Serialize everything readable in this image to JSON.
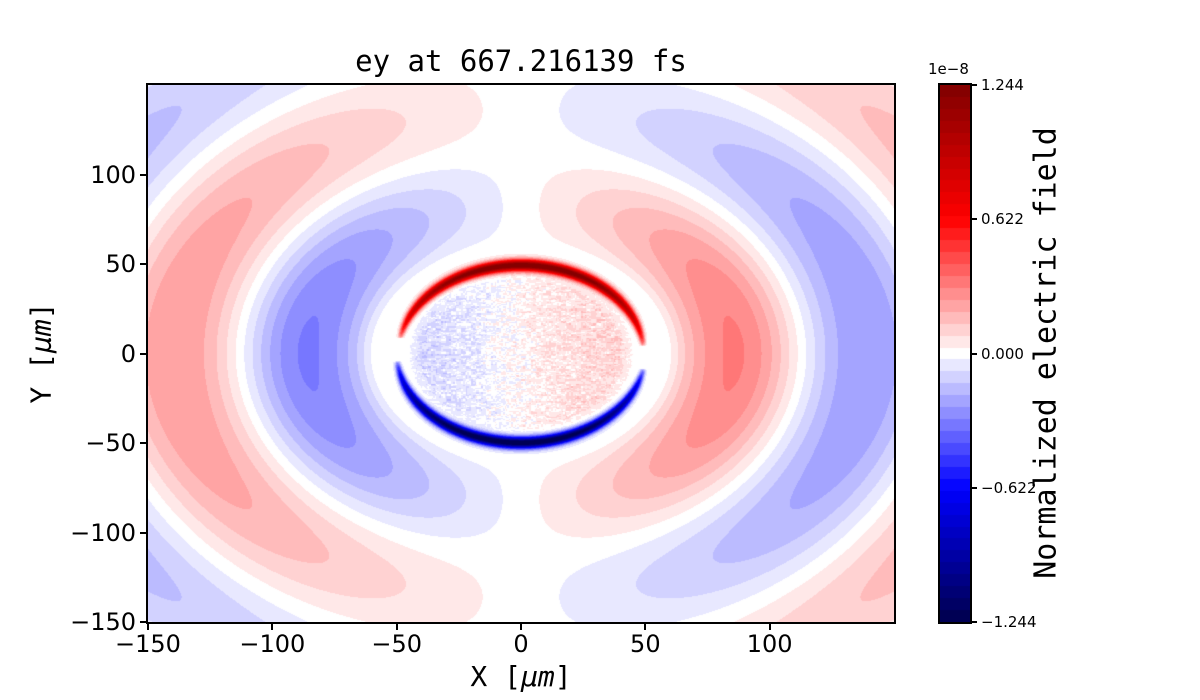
{
  "page": {
    "background": "#ffffff"
  },
  "chart_data": {
    "type": "heatmap",
    "title": "ey at 667.216139 fs",
    "xlabel": {
      "pre": "X [",
      "unit": "µm",
      "post": "]"
    },
    "ylabel": {
      "pre": "Y [",
      "unit": "µm",
      "post": "]"
    },
    "xlim": [
      -150,
      150
    ],
    "ylim": [
      -150,
      150
    ],
    "x_tick_values": [
      -150,
      -100,
      -50,
      0,
      50,
      100
    ],
    "x_tick_labels": [
      "−150",
      "−100",
      "−50",
      "0",
      "50",
      "100"
    ],
    "y_tick_values": [
      100,
      50,
      0,
      -50,
      -100,
      -150
    ],
    "y_tick_labels": [
      "100",
      "50",
      "0",
      "−50",
      "−100",
      "−150"
    ],
    "grid": false,
    "colorbar": {
      "label": "Normalized electric field",
      "scale_label": "1e−8",
      "tick_values": [
        1.244,
        0.622,
        0.0,
        -0.622,
        -1.244
      ],
      "tick_labels": [
        "1.244",
        "0.622",
        "0.000",
        "−0.622",
        "−1.244"
      ],
      "vmin": -1.244,
      "vmax": 1.244,
      "n_levels": 45,
      "colormap": "seismic"
    },
    "field_model": {
      "description": "Snapshot of transverse electric field ey around a circular plasma bubble of radius 50 µm centred at the origin: an intense positive (dark red) arc along the top of the circle, an intense negative (dark blue) arc along the bottom, a low-amplitude speckled interior (bluish left half, reddish right half, white ragged vertical band near x≈-5 µm), a white moat just outside the circle, and an outgoing antisymmetric wave pattern: on the right side an inner red lobe (~r=60-105 µm) then an outer blue crescent (~r=115-170 µm) then pale red corners; mirrored colors on the left side.",
      "bubble_radius_um": 50,
      "arc_radius_red_um": 49.3,
      "arc_radius_blue_um": 49.9,
      "red_arc_deg": [
        5,
        170
      ],
      "blue_arc_deg": [
        185,
        350
      ],
      "arc_peak_amplitude": 1.32,
      "wave_amplitude": 0.28,
      "wave_first_zero_um": 58,
      "wave_half_wavelength_um": 55,
      "moat_um": [
        52,
        66
      ],
      "interior_amplitude": 0.115,
      "interior_noise_amplitude": 0.085,
      "noise_cell_um": [
        2.0,
        1.2
      ]
    }
  }
}
